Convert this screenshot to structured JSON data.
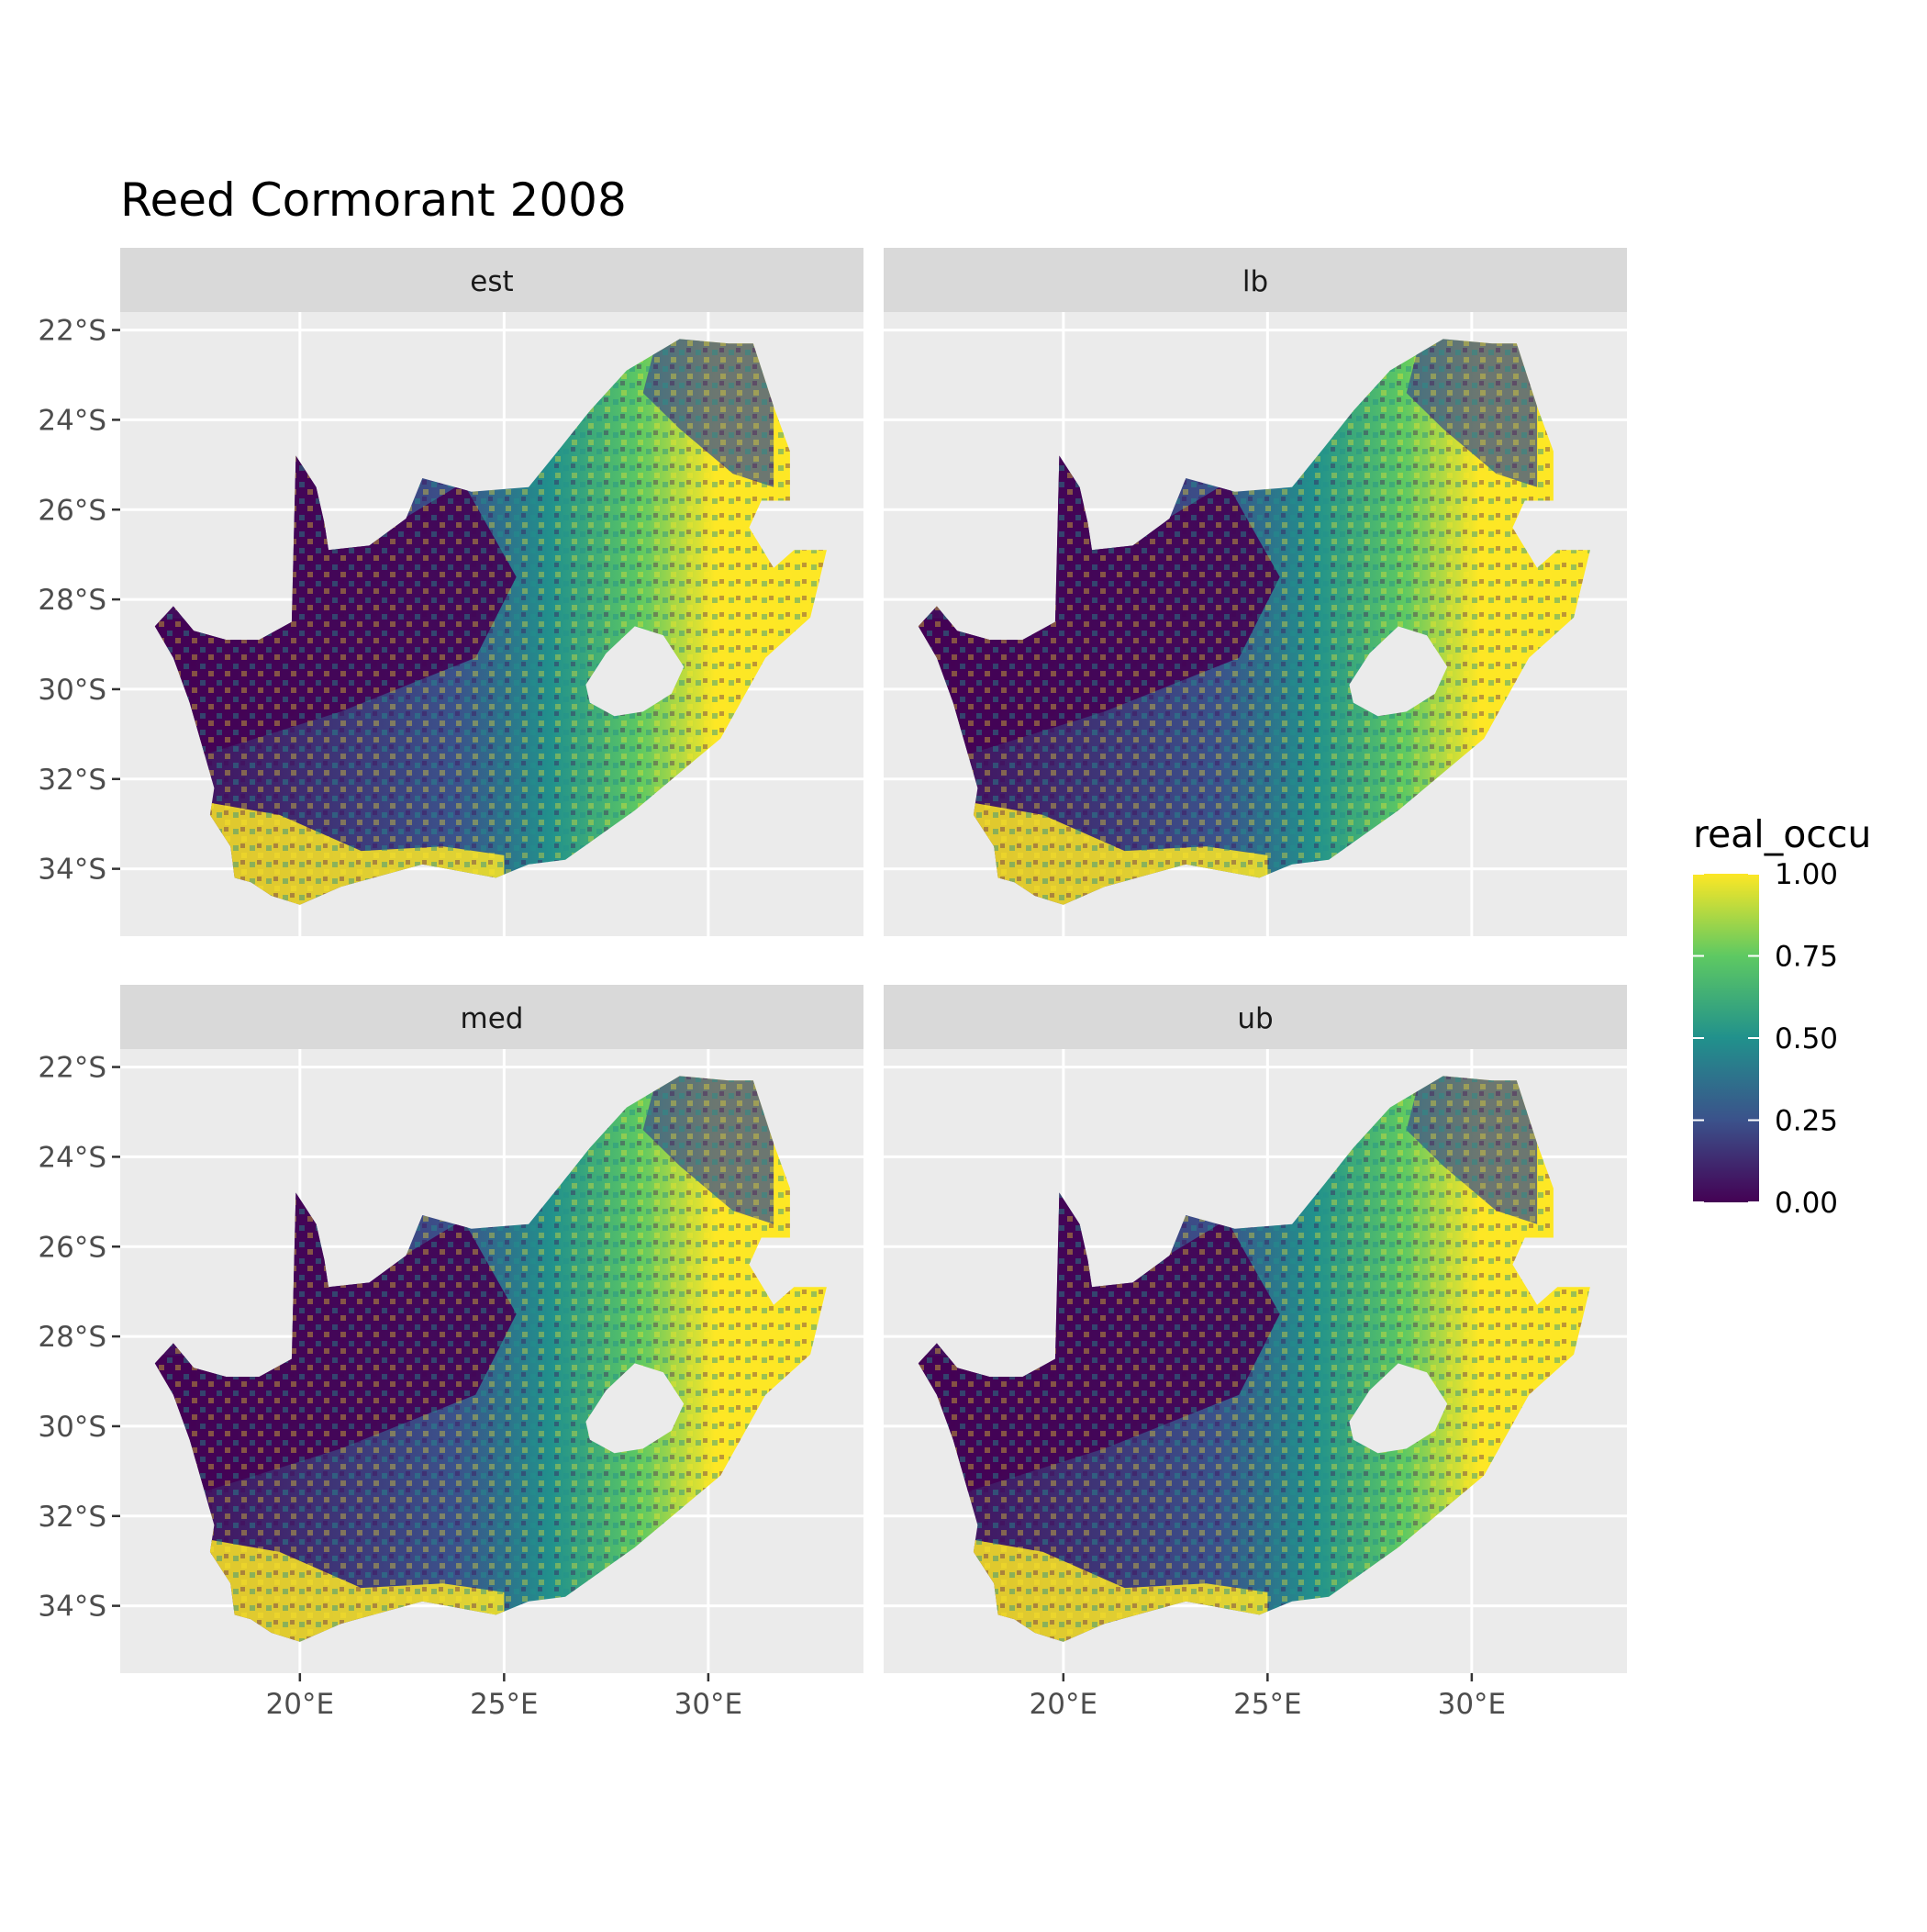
{
  "title": "Reed Cormorant 2008",
  "facets": [
    {
      "label": "est"
    },
    {
      "label": "lb"
    },
    {
      "label": "med"
    },
    {
      "label": "ub"
    }
  ],
  "axes": {
    "x_ticks": [
      {
        "value": 20,
        "label": "20°E"
      },
      {
        "value": 25,
        "label": "25°E"
      },
      {
        "value": 30,
        "label": "30°E"
      }
    ],
    "y_ticks": [
      {
        "value": -22,
        "label": "22°S"
      },
      {
        "value": -24,
        "label": "24°S"
      },
      {
        "value": -26,
        "label": "26°S"
      },
      {
        "value": -28,
        "label": "28°S"
      },
      {
        "value": -30,
        "label": "30°S"
      },
      {
        "value": -32,
        "label": "32°S"
      },
      {
        "value": -34,
        "label": "34°S"
      }
    ],
    "x_range": [
      15.6,
      33.8
    ],
    "y_range": [
      -35.5,
      -21.6
    ]
  },
  "legend": {
    "title": "real_occu",
    "breaks": [
      {
        "value": 1.0,
        "label": "1.00"
      },
      {
        "value": 0.75,
        "label": "0.75"
      },
      {
        "value": 0.5,
        "label": "0.50"
      },
      {
        "value": 0.25,
        "label": "0.25"
      },
      {
        "value": 0.0,
        "label": "0.00"
      }
    ],
    "palette": "viridis",
    "colors": [
      "#440154",
      "#3b528b",
      "#21918c",
      "#5ec962",
      "#fde725"
    ]
  },
  "colors": {
    "panel_background": "#ebebeb",
    "strip_background": "#d9d9d9",
    "grid": "#ffffff"
  }
}
